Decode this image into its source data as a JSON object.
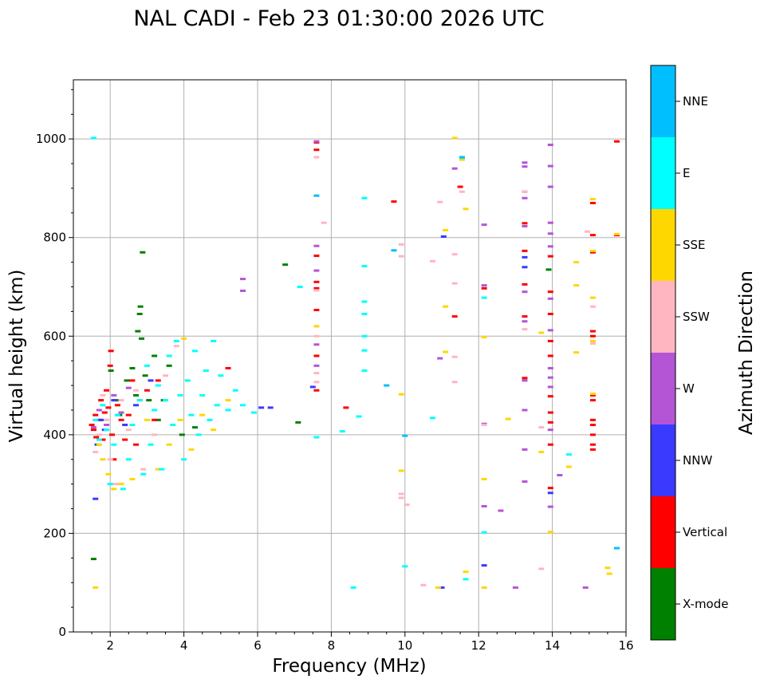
{
  "chart_data": {
    "type": "scatter",
    "title": "NAL CADI - Feb 23 01:30:00 2026 UTC",
    "xlabel": "Frequency (MHz)",
    "ylabel": "Virtual height (km)",
    "xlim": [
      1,
      16
    ],
    "ylim": [
      0,
      1120
    ],
    "xticks": [
      2,
      4,
      6,
      8,
      10,
      12,
      14,
      16
    ],
    "yticks": [
      0,
      200,
      400,
      600,
      800,
      1000
    ],
    "grid": true,
    "colorbar": {
      "label": "Azimuth Direction",
      "position": "right",
      "categories": [
        {
          "name": "X-mode",
          "color": "#008000"
        },
        {
          "name": "Vertical",
          "color": "#ff0000"
        },
        {
          "name": "NNW",
          "color": "#3a3aff"
        },
        {
          "name": "W",
          "color": "#b455d6"
        },
        {
          "name": "SSW",
          "color": "#ffb6c1"
        },
        {
          "name": "SSE",
          "color": "#ffd700"
        },
        {
          "name": "E",
          "color": "#00ffff"
        },
        {
          "name": "NNE",
          "color": "#00bfff"
        }
      ]
    },
    "series": [
      {
        "category": "X-mode",
        "points": [
          [
            1.55,
            148
          ],
          [
            2.02,
            530
          ],
          [
            2.15,
            470
          ],
          [
            2.25,
            440
          ],
          [
            2.45,
            510
          ],
          [
            2.6,
            535
          ],
          [
            2.7,
            480
          ],
          [
            2.75,
            610
          ],
          [
            2.8,
            645
          ],
          [
            2.82,
            660
          ],
          [
            2.85,
            595
          ],
          [
            2.88,
            770
          ],
          [
            2.95,
            520
          ],
          [
            3.05,
            470
          ],
          [
            3.2,
            560
          ],
          [
            3.3,
            430
          ],
          [
            3.45,
            470
          ],
          [
            3.6,
            540
          ],
          [
            3.95,
            400
          ],
          [
            4.3,
            415
          ],
          [
            6.75,
            745
          ],
          [
            7.1,
            425
          ],
          [
            13.9,
            735
          ]
        ]
      },
      {
        "category": "Vertical",
        "points": [
          [
            1.5,
            420
          ],
          [
            1.55,
            410
          ],
          [
            1.6,
            440
          ],
          [
            1.62,
            395
          ],
          [
            1.7,
            430
          ],
          [
            1.75,
            470
          ],
          [
            1.8,
            390
          ],
          [
            1.85,
            445
          ],
          [
            1.9,
            490
          ],
          [
            1.95,
            455
          ],
          [
            2.0,
            540
          ],
          [
            2.02,
            570
          ],
          [
            2.05,
            400
          ],
          [
            2.1,
            350
          ],
          [
            2.2,
            460
          ],
          [
            2.3,
            430
          ],
          [
            2.4,
            390
          ],
          [
            2.5,
            440
          ],
          [
            2.6,
            510
          ],
          [
            2.7,
            380
          ],
          [
            2.8,
            470
          ],
          [
            3.0,
            490
          ],
          [
            3.2,
            430
          ],
          [
            3.3,
            510
          ],
          [
            5.2,
            535
          ],
          [
            7.6,
            993
          ],
          [
            7.6,
            978
          ],
          [
            7.6,
            763
          ],
          [
            7.6,
            697
          ],
          [
            7.6,
            653
          ],
          [
            7.6,
            560
          ],
          [
            7.6,
            490
          ],
          [
            7.6,
            710
          ],
          [
            8.4,
            455
          ],
          [
            9.7,
            873
          ],
          [
            11.35,
            640
          ],
          [
            11.5,
            903
          ],
          [
            12.15,
            697
          ],
          [
            13.25,
            829
          ],
          [
            13.25,
            773
          ],
          [
            13.25,
            705
          ],
          [
            13.25,
            640
          ],
          [
            13.25,
            515
          ],
          [
            13.95,
            762
          ],
          [
            13.95,
            690
          ],
          [
            13.95,
            645
          ],
          [
            13.95,
            590
          ],
          [
            13.95,
            560
          ],
          [
            13.95,
            478
          ],
          [
            13.95,
            445
          ],
          [
            13.95,
            425
          ],
          [
            13.95,
            380
          ],
          [
            13.95,
            292
          ],
          [
            15.1,
            870
          ],
          [
            15.1,
            805
          ],
          [
            15.1,
            770
          ],
          [
            15.1,
            610
          ],
          [
            15.1,
            600
          ],
          [
            15.1,
            480
          ],
          [
            15.1,
            470
          ],
          [
            15.1,
            430
          ],
          [
            15.1,
            420
          ],
          [
            15.1,
            400
          ],
          [
            15.1,
            380
          ],
          [
            15.1,
            370
          ],
          [
            15.75,
            995
          ],
          [
            15.75,
            805
          ]
        ]
      },
      {
        "category": "NNW",
        "points": [
          [
            1.6,
            270
          ],
          [
            1.65,
            380
          ],
          [
            1.75,
            430
          ],
          [
            1.85,
            410
          ],
          [
            2.1,
            470
          ],
          [
            2.4,
            420
          ],
          [
            2.7,
            460
          ],
          [
            3.1,
            510
          ],
          [
            6.1,
            455
          ],
          [
            6.35,
            455
          ],
          [
            7.5,
            497
          ],
          [
            11.0,
            90
          ],
          [
            11.05,
            802
          ],
          [
            12.15,
            135
          ],
          [
            13.25,
            760
          ],
          [
            13.25,
            740
          ],
          [
            13.95,
            282
          ]
        ]
      },
      {
        "category": "W",
        "points": [
          [
            1.55,
            415
          ],
          [
            1.7,
            450
          ],
          [
            1.9,
            420
          ],
          [
            2.1,
            480
          ],
          [
            2.3,
            445
          ],
          [
            2.5,
            495
          ],
          [
            5.6,
            716
          ],
          [
            5.6,
            692
          ],
          [
            7.6,
            995
          ],
          [
            7.6,
            783
          ],
          [
            7.6,
            733
          ],
          [
            7.6,
            583
          ],
          [
            7.6,
            540
          ],
          [
            10.95,
            555
          ],
          [
            11.35,
            940
          ],
          [
            12.15,
            826
          ],
          [
            12.15,
            703
          ],
          [
            12.15,
            422
          ],
          [
            12.15,
            255
          ],
          [
            12.6,
            246
          ],
          [
            13.0,
            90
          ],
          [
            13.25,
            952
          ],
          [
            13.25,
            944
          ],
          [
            13.25,
            893
          ],
          [
            13.25,
            880
          ],
          [
            13.25,
            823
          ],
          [
            13.25,
            690
          ],
          [
            13.25,
            630
          ],
          [
            13.25,
            510
          ],
          [
            13.25,
            450
          ],
          [
            13.25,
            370
          ],
          [
            13.25,
            305
          ],
          [
            13.95,
            988
          ],
          [
            13.95,
            945
          ],
          [
            13.95,
            903
          ],
          [
            13.95,
            830
          ],
          [
            13.95,
            808
          ],
          [
            13.95,
            782
          ],
          [
            13.95,
            676
          ],
          [
            13.95,
            612
          ],
          [
            13.95,
            535
          ],
          [
            13.95,
            516
          ],
          [
            13.95,
            497
          ],
          [
            13.95,
            410
          ],
          [
            13.95,
            254
          ],
          [
            14.2,
            318
          ],
          [
            14.9,
            90
          ]
        ]
      },
      {
        "category": "SSW",
        "points": [
          [
            1.6,
            365
          ],
          [
            1.7,
            400
          ],
          [
            1.8,
            480
          ],
          [
            1.9,
            430
          ],
          [
            2.0,
            350
          ],
          [
            2.15,
            300
          ],
          [
            2.3,
            470
          ],
          [
            2.5,
            410
          ],
          [
            2.7,
            490
          ],
          [
            2.9,
            330
          ],
          [
            3.2,
            400
          ],
          [
            3.5,
            520
          ],
          [
            3.8,
            580
          ],
          [
            7.6,
            963
          ],
          [
            7.6,
            693
          ],
          [
            7.6,
            600
          ],
          [
            7.6,
            525
          ],
          [
            7.6,
            507
          ],
          [
            7.8,
            830
          ],
          [
            9.9,
            786
          ],
          [
            9.9,
            762
          ],
          [
            9.9,
            280
          ],
          [
            9.9,
            272
          ],
          [
            10.05,
            258
          ],
          [
            10.5,
            95
          ],
          [
            10.75,
            752
          ],
          [
            10.95,
            872
          ],
          [
            11.35,
            766
          ],
          [
            11.35,
            707
          ],
          [
            11.35,
            558
          ],
          [
            11.35,
            507
          ],
          [
            11.55,
            893
          ],
          [
            12.15,
            420
          ],
          [
            13.25,
            893
          ],
          [
            13.25,
            614
          ],
          [
            13.7,
            128
          ],
          [
            13.7,
            415
          ],
          [
            13.95,
            203
          ],
          [
            14.95,
            812
          ],
          [
            15.1,
            660
          ],
          [
            15.1,
            585
          ]
        ]
      },
      {
        "category": "SSE",
        "points": [
          [
            1.6,
            90
          ],
          [
            1.7,
            380
          ],
          [
            1.8,
            350
          ],
          [
            1.95,
            320
          ],
          [
            2.1,
            290
          ],
          [
            2.3,
            300
          ],
          [
            2.6,
            310
          ],
          [
            2.8,
            470
          ],
          [
            3.0,
            430
          ],
          [
            3.3,
            330
          ],
          [
            3.6,
            380
          ],
          [
            3.9,
            430
          ],
          [
            4.0,
            595
          ],
          [
            4.2,
            370
          ],
          [
            4.5,
            440
          ],
          [
            4.8,
            410
          ],
          [
            5.2,
            470
          ],
          [
            7.6,
            620
          ],
          [
            9.9,
            482
          ],
          [
            9.9,
            327
          ],
          [
            10.9,
            90
          ],
          [
            11.1,
            660
          ],
          [
            11.1,
            568
          ],
          [
            11.1,
            815
          ],
          [
            11.35,
            1002
          ],
          [
            11.55,
            958
          ],
          [
            11.65,
            858
          ],
          [
            11.65,
            122
          ],
          [
            12.15,
            598
          ],
          [
            12.15,
            310
          ],
          [
            12.15,
            90
          ],
          [
            12.8,
            432
          ],
          [
            13.7,
            365
          ],
          [
            13.7,
            607
          ],
          [
            13.95,
            202
          ],
          [
            14.45,
            335
          ],
          [
            14.65,
            750
          ],
          [
            14.65,
            703
          ],
          [
            14.65,
            567
          ],
          [
            15.1,
            878
          ],
          [
            15.1,
            773
          ],
          [
            15.1,
            678
          ],
          [
            15.1,
            590
          ],
          [
            15.1,
            483
          ],
          [
            15.5,
            130
          ],
          [
            15.55,
            118
          ],
          [
            15.75,
            807
          ]
        ]
      },
      {
        "category": "E",
        "points": [
          [
            1.55,
            1002
          ],
          [
            1.6,
            430
          ],
          [
            1.7,
            390
          ],
          [
            1.8,
            460
          ],
          [
            1.9,
            410
          ],
          [
            2.0,
            300
          ],
          [
            2.1,
            380
          ],
          [
            2.2,
            440
          ],
          [
            2.35,
            290
          ],
          [
            2.5,
            350
          ],
          [
            2.6,
            420
          ],
          [
            2.8,
            470
          ],
          [
            2.9,
            320
          ],
          [
            3.0,
            540
          ],
          [
            3.1,
            380
          ],
          [
            3.2,
            450
          ],
          [
            3.3,
            500
          ],
          [
            3.4,
            330
          ],
          [
            3.5,
            470
          ],
          [
            3.6,
            560
          ],
          [
            3.7,
            420
          ],
          [
            3.8,
            590
          ],
          [
            3.9,
            480
          ],
          [
            4.0,
            350
          ],
          [
            4.1,
            510
          ],
          [
            4.2,
            440
          ],
          [
            4.3,
            570
          ],
          [
            4.4,
            400
          ],
          [
            4.5,
            480
          ],
          [
            4.6,
            530
          ],
          [
            4.7,
            430
          ],
          [
            4.8,
            590
          ],
          [
            4.9,
            460
          ],
          [
            5.0,
            520
          ],
          [
            5.2,
            450
          ],
          [
            5.4,
            490
          ],
          [
            5.6,
            460
          ],
          [
            5.9,
            445
          ],
          [
            7.15,
            700
          ],
          [
            7.6,
            395
          ],
          [
            8.3,
            407
          ],
          [
            8.6,
            90
          ],
          [
            8.75,
            437
          ],
          [
            8.9,
            880
          ],
          [
            8.9,
            742
          ],
          [
            8.9,
            670
          ],
          [
            8.9,
            645
          ],
          [
            8.9,
            600
          ],
          [
            8.9,
            571
          ],
          [
            8.9,
            530
          ],
          [
            10.0,
            133
          ],
          [
            10.75,
            434
          ],
          [
            11.55,
            962
          ],
          [
            11.65,
            107
          ],
          [
            12.15,
            678
          ],
          [
            12.15,
            202
          ],
          [
            14.45,
            360
          ],
          [
            15.75,
            170
          ]
        ]
      },
      {
        "category": "NNE",
        "points": [
          [
            7.6,
            885
          ],
          [
            9.5,
            500
          ],
          [
            9.7,
            774
          ],
          [
            10.0,
            398
          ],
          [
            11.55,
            963
          ],
          [
            15.75,
            170
          ]
        ]
      }
    ]
  }
}
